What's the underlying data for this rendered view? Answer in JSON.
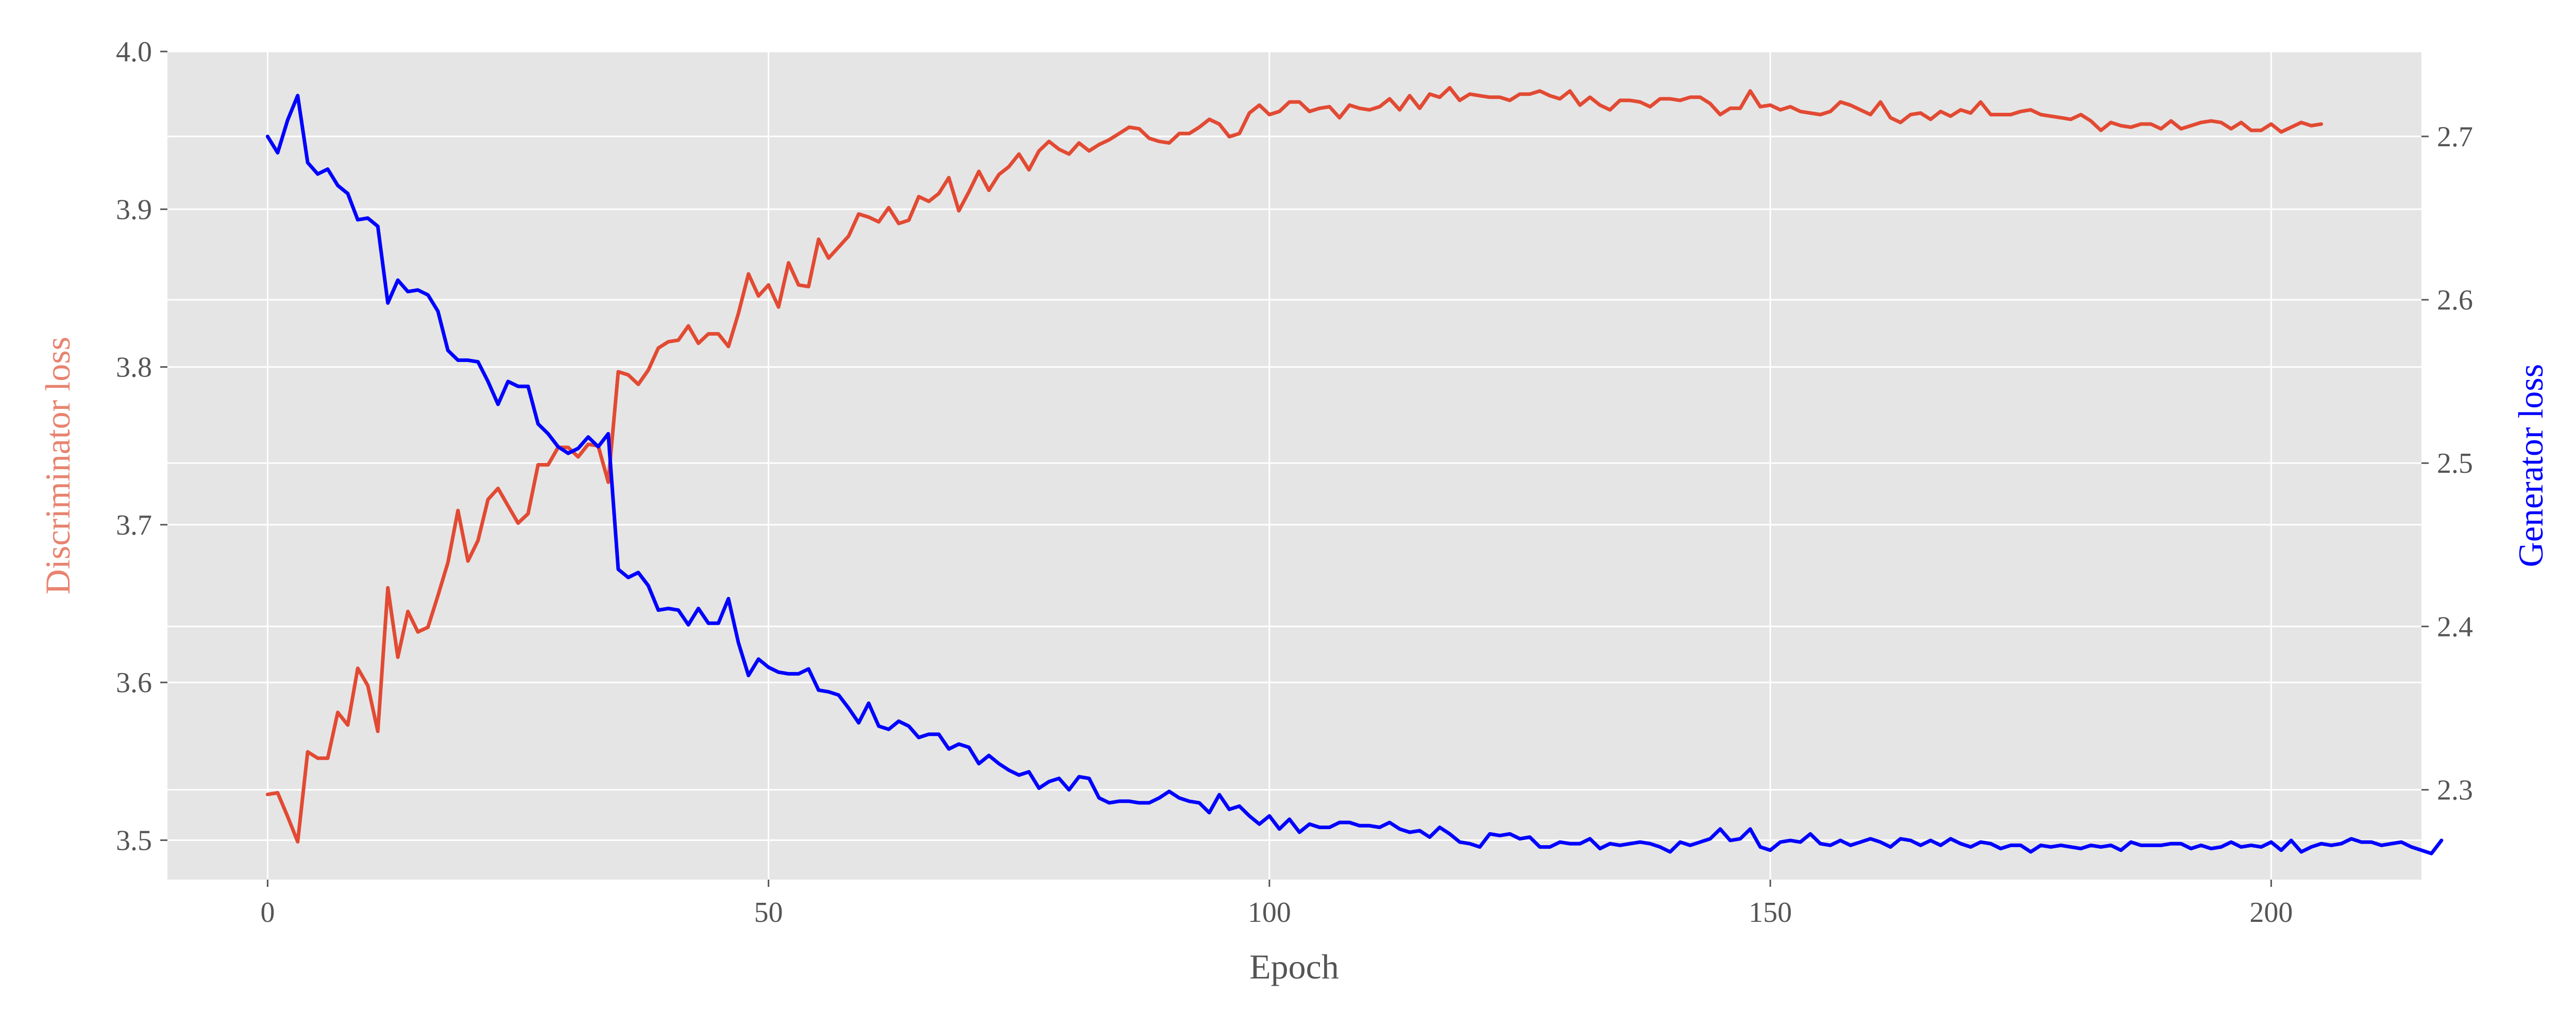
{
  "chart_data": {
    "type": "line",
    "title": "",
    "xlabel": "Epoch",
    "ylabel_left": "Discriminator loss",
    "ylabel_right": "Generator loss",
    "xlim": [
      -10,
      215
    ],
    "ylim_left": [
      3.475,
      4.0
    ],
    "ylim_right": [
      2.245,
      2.752
    ],
    "x_ticks": [
      0,
      50,
      100,
      150,
      200
    ],
    "y_ticks_left": [
      3.5,
      3.6,
      3.7,
      3.8,
      3.9,
      4.0
    ],
    "y_ticks_right": [
      2.3,
      2.4,
      2.5,
      2.6,
      2.7
    ],
    "grid": true,
    "legend": "none",
    "colors": {
      "plot_background": "#e5e5e5",
      "grid": "#ffffff",
      "discriminator": "#e24a33",
      "generator": "#0000ff",
      "left_label": "#e8836f",
      "right_label": "#0000ff"
    },
    "series": [
      {
        "axis": "left",
        "color": "#e24a33",
        "values": [
          3.529,
          3.53,
          3.515,
          3.499,
          3.556,
          3.552,
          3.552,
          3.581,
          3.573,
          3.609,
          3.598,
          3.569,
          3.66,
          3.616,
          3.645,
          3.632,
          3.635,
          3.655,
          3.676,
          3.709,
          3.677,
          3.69,
          3.716,
          3.723,
          3.712,
          3.701,
          3.707,
          3.738,
          3.738,
          3.749,
          3.749,
          3.743,
          3.751,
          3.75,
          3.727,
          3.797,
          3.795,
          3.789,
          3.798,
          3.812,
          3.816,
          3.817,
          3.826,
          3.815,
          3.821,
          3.821,
          3.813,
          3.834,
          3.859,
          3.845,
          3.852,
          3.838,
          3.866,
          3.852,
          3.851,
          3.881,
          3.869,
          3.876,
          3.883,
          3.897,
          3.895,
          3.892,
          3.901,
          3.891,
          3.893,
          3.908,
          3.905,
          3.91,
          3.92,
          3.899,
          3.911,
          3.924,
          3.912,
          3.922,
          3.927,
          3.935,
          3.925,
          3.937,
          3.943,
          3.938,
          3.935,
          3.942,
          3.937,
          3.941,
          3.944,
          3.948,
          3.952,
          3.951,
          3.945,
          3.943,
          3.942,
          3.948,
          3.948,
          3.952,
          3.957,
          3.954,
          3.946,
          3.948,
          3.961,
          3.966,
          3.96,
          3.962,
          3.968,
          3.968,
          3.962,
          3.964,
          3.965,
          3.958,
          3.966,
          3.964,
          3.963,
          3.965,
          3.97,
          3.963,
          3.972,
          3.964,
          3.973,
          3.971,
          3.977,
          3.969,
          3.973,
          3.972,
          3.971,
          3.971,
          3.969,
          3.973,
          3.973,
          3.975,
          3.972,
          3.97,
          3.975,
          3.966,
          3.971,
          3.966,
          3.963,
          3.969,
          3.969,
          3.968,
          3.965,
          3.97,
          3.97,
          3.969,
          3.971,
          3.971,
          3.967,
          3.96,
          3.964,
          3.964,
          3.975,
          3.965,
          3.966,
          3.963,
          3.965,
          3.962,
          3.961,
          3.96,
          3.962,
          3.968,
          3.966,
          3.963,
          3.96,
          3.968,
          3.958,
          3.955,
          3.96,
          3.961,
          3.957,
          3.962,
          3.959,
          3.963,
          3.961,
          3.968,
          3.96,
          3.96,
          3.96,
          3.962,
          3.963,
          3.96,
          3.959,
          3.958,
          3.957,
          3.96,
          3.956,
          3.95,
          3.955,
          3.953,
          3.952,
          3.954,
          3.954,
          3.951,
          3.956,
          3.951,
          3.953,
          3.955,
          3.956,
          3.955,
          3.951,
          3.955,
          3.95,
          3.95,
          3.954,
          3.949,
          3.952,
          3.955,
          3.953,
          3.954
        ]
      },
      {
        "axis": "right",
        "color": "#0000ff",
        "values": [
          2.7,
          2.69,
          2.71,
          2.725,
          2.684,
          2.677,
          2.68,
          2.67,
          2.665,
          2.649,
          2.65,
          2.645,
          2.598,
          2.612,
          2.605,
          2.606,
          2.603,
          2.593,
          2.569,
          2.563,
          2.563,
          2.562,
          2.55,
          2.536,
          2.55,
          2.547,
          2.547,
          2.524,
          2.518,
          2.51,
          2.506,
          2.509,
          2.516,
          2.51,
          2.518,
          2.435,
          2.43,
          2.433,
          2.425,
          2.41,
          2.411,
          2.41,
          2.401,
          2.411,
          2.402,
          2.402,
          2.417,
          2.39,
          2.37,
          2.38,
          2.375,
          2.372,
          2.371,
          2.371,
          2.374,
          2.361,
          2.36,
          2.358,
          2.35,
          2.341,
          2.353,
          2.339,
          2.337,
          2.342,
          2.339,
          2.332,
          2.334,
          2.334,
          2.325,
          2.328,
          2.326,
          2.316,
          2.321,
          2.316,
          2.312,
          2.309,
          2.311,
          2.301,
          2.305,
          2.307,
          2.3,
          2.308,
          2.307,
          2.295,
          2.292,
          2.293,
          2.293,
          2.292,
          2.292,
          2.295,
          2.299,
          2.295,
          2.293,
          2.292,
          2.286,
          2.297,
          2.288,
          2.29,
          2.284,
          2.279,
          2.284,
          2.276,
          2.282,
          2.274,
          2.279,
          2.277,
          2.277,
          2.28,
          2.28,
          2.278,
          2.278,
          2.277,
          2.28,
          2.276,
          2.274,
          2.275,
          2.271,
          2.277,
          2.273,
          2.268,
          2.267,
          2.265,
          2.273,
          2.272,
          2.273,
          2.27,
          2.271,
          2.265,
          2.265,
          2.268,
          2.267,
          2.267,
          2.27,
          2.264,
          2.267,
          2.266,
          2.267,
          2.268,
          2.267,
          2.265,
          2.262,
          2.268,
          2.266,
          2.268,
          2.27,
          2.276,
          2.269,
          2.27,
          2.276,
          2.265,
          2.263,
          2.268,
          2.269,
          2.268,
          2.273,
          2.267,
          2.266,
          2.269,
          2.266,
          2.268,
          2.27,
          2.268,
          2.265,
          2.27,
          2.269,
          2.266,
          2.269,
          2.266,
          2.27,
          2.267,
          2.265,
          2.268,
          2.267,
          2.264,
          2.266,
          2.266,
          2.262,
          2.266,
          2.265,
          2.266,
          2.265,
          2.264,
          2.266,
          2.265,
          2.266,
          2.263,
          2.268,
          2.266,
          2.266,
          2.266,
          2.267,
          2.267,
          2.264,
          2.266,
          2.264,
          2.265,
          2.268,
          2.265,
          2.266,
          2.265,
          2.268,
          2.263,
          2.269,
          2.262,
          2.265,
          2.267,
          2.266,
          2.267,
          2.27,
          2.268,
          2.268,
          2.266,
          2.267,
          2.268,
          2.265,
          2.263,
          2.261,
          2.269
        ]
      }
    ]
  }
}
